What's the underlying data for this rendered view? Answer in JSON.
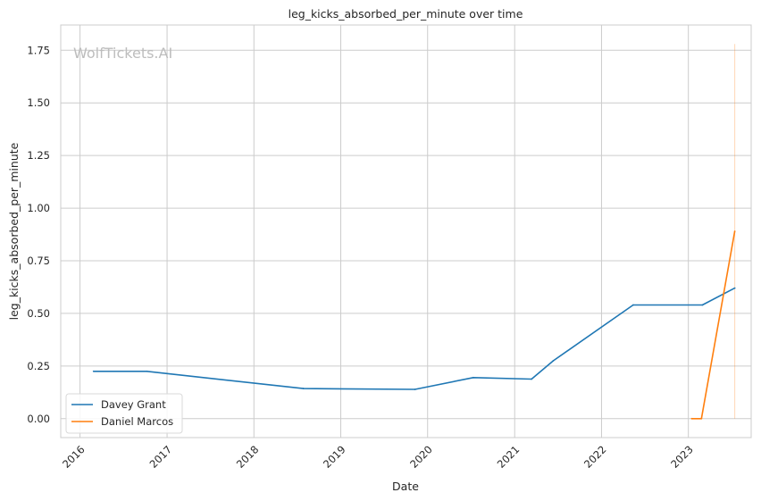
{
  "chart_data": {
    "type": "line",
    "title": "leg_kicks_absorbed_per_minute over time",
    "xlabel": "Date",
    "ylabel": "leg_kicks_absorbed_per_minute",
    "watermark": "WolfTickets.AI",
    "x_ticks": [
      "2016",
      "2017",
      "2018",
      "2019",
      "2020",
      "2021",
      "2022",
      "2023"
    ],
    "y_ticks": [
      "0.00",
      "0.25",
      "0.50",
      "0.75",
      "1.00",
      "1.25",
      "1.50",
      "1.75"
    ],
    "xlim": [
      "2015-10-12",
      "2023-09-22"
    ],
    "ylim": [
      -0.09,
      1.87
    ],
    "grid": true,
    "legend_position": "lower-left",
    "series": [
      {
        "name": "Davey Grant",
        "color": "#1f77b4",
        "x": [
          "2016-02-27",
          "2016-10-08",
          "2018-07-28",
          "2019-11-09",
          "2020-07-11",
          "2021-03-13",
          "2021-06-12",
          "2022-05-14",
          "2023-03-01",
          "2023-07-15"
        ],
        "y": [
          0.225,
          0.225,
          0.143,
          0.139,
          0.195,
          0.188,
          0.275,
          0.54,
          0.54,
          0.62
        ]
      },
      {
        "name": "Daniel Marcos",
        "color": "#ff7f0e",
        "x": [
          "2023-01-15",
          "2023-02-25",
          "2023-07-15"
        ],
        "y": [
          0.0,
          0.0,
          0.89
        ]
      }
    ],
    "annotation_line": {
      "x": "2023-07-15",
      "y_range": [
        0.0,
        1.78
      ],
      "color": "#ff7f0e"
    }
  }
}
